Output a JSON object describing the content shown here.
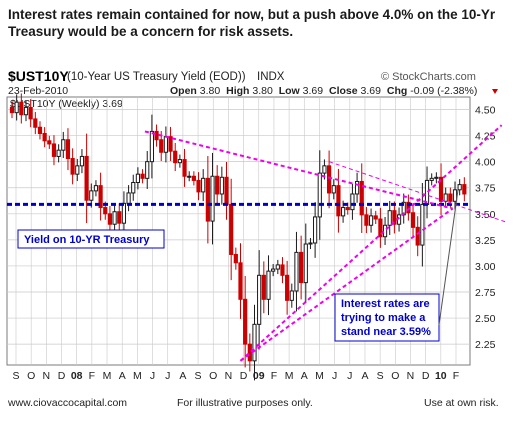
{
  "headline": "Interest rates remain contained for now, but a push above 4.0% on the 10-Yr Treasury would be a concern for risk assets.",
  "header": {
    "symbol": "$UST10Y",
    "description": "(10-Year US Treasury Yield (EOD))",
    "exchange": "INDX",
    "brand": "© StockCharts.com",
    "date": "23-Feb-2010",
    "open_label": "Open",
    "open": "3.80",
    "high_label": "High",
    "high": "3.80",
    "low_label": "Low",
    "low": "3.69",
    "close_label": "Close",
    "close": "3.69",
    "chg_label": "Chg",
    "chg": "-0.09 (-2.38%)",
    "series_label": "$UST10Y (Weekly) 3.69"
  },
  "chart_data": {
    "type": "candlestick",
    "y_ticks": [
      "4.50",
      "4.25",
      "4.00",
      "3.75",
      "3.50",
      "3.25",
      "3.00",
      "2.75",
      "2.50",
      "2.25"
    ],
    "x_ticks": [
      "S",
      "O",
      "N",
      "D",
      "08",
      "F",
      "M",
      "A",
      "M",
      "J",
      "J",
      "A",
      "S",
      "O",
      "N",
      "D",
      "09",
      "F",
      "M",
      "A",
      "M",
      "J",
      "J",
      "A",
      "S",
      "O",
      "N",
      "D",
      "10",
      "F"
    ],
    "ylim": [
      2.05,
      4.62
    ],
    "support_level": 3.59,
    "trendlines": [
      {
        "name": "upper-resistance",
        "from": [
          28.5,
          4.29
        ],
        "to": [
          94.5,
          3.55
        ]
      },
      {
        "name": "lower-support",
        "from": [
          49.0,
          2.09
        ],
        "to": [
          94.5,
          3.55
        ]
      },
      {
        "name": "long-rising",
        "from": [
          49.0,
          2.09
        ],
        "to": [
          105,
          4.35
        ]
      },
      {
        "name": "secondary-descending",
        "from": [
          68,
          4.0
        ],
        "to": [
          106,
          3.42
        ]
      }
    ],
    "annotations": {
      "yield_label": "Yield on 10-YR Treasury",
      "callout": [
        "Interest rates are",
        "trying to make a",
        "stand near 3.59%"
      ]
    },
    "close_values": [
      4.47,
      4.57,
      4.45,
      4.52,
      4.41,
      4.33,
      4.27,
      4.2,
      4.17,
      4.05,
      4.11,
      4.21,
      4.03,
      3.88,
      3.96,
      4.05,
      3.63,
      3.72,
      3.77,
      3.56,
      3.5,
      3.4,
      3.52,
      3.41,
      3.6,
      3.7,
      3.8,
      3.88,
      3.84,
      4.0,
      4.29,
      4.21,
      4.09,
      4.24,
      4.1,
      3.99,
      4.02,
      3.86,
      3.86,
      3.82,
      3.71,
      3.84,
      3.43,
      3.86,
      3.69,
      3.85,
      3.59,
      3.11,
      3.03,
      2.68,
      2.25,
      2.09,
      2.44,
      2.91,
      2.68,
      2.95,
      2.97,
      3.01,
      2.91,
      2.67,
      2.76,
      3.13,
      2.84,
      3.21,
      3.22,
      3.47,
      3.89,
      3.96,
      3.7,
      3.77,
      3.48,
      3.56,
      3.54,
      3.69,
      3.81,
      3.49,
      3.39,
      3.48,
      3.45,
      3.28,
      3.39,
      3.53,
      3.4,
      3.49,
      3.61,
      3.51,
      3.37,
      3.2,
      3.59,
      3.82,
      3.84,
      3.85,
      3.62,
      3.69,
      3.62,
      3.73,
      3.78,
      3.69
    ]
  },
  "footer": {
    "website": "www.ciovaccocapital.com",
    "disclaimer": "For illustrative purposes only.",
    "risk": "Use at own risk."
  },
  "colors": {
    "up": "#1a1a1a",
    "down": "#cc0000",
    "support": "#0000cc",
    "trend": "#ee00ee",
    "grid": "#c9c9c9",
    "frame": "#7b7b7b"
  }
}
